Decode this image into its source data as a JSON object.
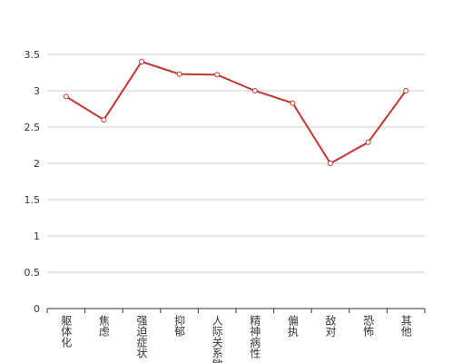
{
  "chart_data": {
    "type": "line",
    "categories": [
      "躯体化",
      "焦虑",
      "强迫症状",
      "抑郁",
      "人际关系敏感",
      "精神病性",
      "偏执",
      "敌对",
      "恐怖",
      "其他"
    ],
    "values": [
      2.92,
      2.6,
      3.4,
      3.23,
      3.22,
      3.0,
      2.83,
      2.0,
      2.29,
      3.0
    ],
    "color": "#c23531",
    "ylim": [
      0,
      3.5
    ],
    "yticks": [
      0,
      0.5,
      1,
      1.5,
      2,
      2.5,
      3,
      3.5
    ],
    "grid": true
  }
}
